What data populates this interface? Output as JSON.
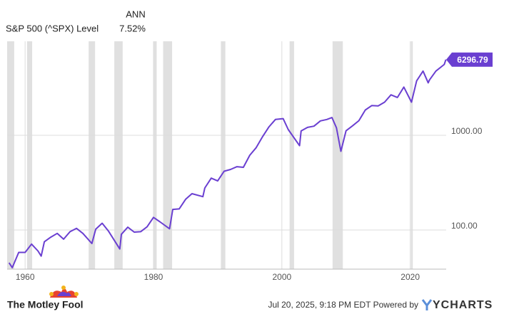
{
  "chart_data": {
    "type": "line",
    "header": "ANN",
    "annualized_return": "7.52%",
    "last_label": "6296.79",
    "log_scale": true,
    "grid": true,
    "x": [
      1957.5,
      1958,
      1959,
      1960,
      1961,
      1962,
      1962.5,
      1963,
      1964,
      1965,
      1966,
      1967,
      1968,
      1969,
      1970.4,
      1971,
      1972,
      1973,
      1974.75,
      1975,
      1976,
      1977,
      1978,
      1979,
      1980,
      1981,
      1982.5,
      1983,
      1984,
      1985,
      1986,
      1987.7,
      1988,
      1989,
      1990,
      1991,
      1992,
      1993,
      1994,
      1995,
      1996,
      1997,
      1998,
      1999,
      2000.2,
      2001,
      2002.75,
      2003,
      2004,
      2005,
      2006,
      2007,
      2007.8,
      2008.5,
      2009.2,
      2010,
      2011,
      2012,
      2013,
      2014,
      2015,
      2016,
      2017,
      2018,
      2019,
      2020.2,
      2021,
      2022,
      2022.8,
      2023,
      2024,
      2025.3,
      2025.55
    ],
    "series": [
      {
        "name": "S&P 500 (^SPX) Level",
        "color": "#6a3fd1",
        "values": [
          45,
          40,
          58,
          58,
          71,
          60,
          53,
          75,
          84,
          92,
          80,
          96,
          104,
          92,
          72,
          102,
          118,
          97,
          63,
          90,
          107,
          95,
          96,
          108,
          136,
          122,
          103,
          165,
          167,
          211,
          242,
          225,
          278,
          353,
          330,
          417,
          436,
          466,
          459,
          616,
          741,
          970,
          1229,
          1469,
          1500,
          1148,
          777,
          1112,
          1212,
          1248,
          1418,
          1468,
          1540,
          1200,
          677,
          1115,
          1258,
          1426,
          1848,
          2059,
          2044,
          2239,
          2674,
          2507,
          3231,
          2237,
          3756,
          4766,
          3580,
          3840,
          4770,
          5600,
          6296.79
        ]
      }
    ],
    "xlim": [
      1957.2,
      2025.6
    ],
    "xticks": [
      1960,
      1980,
      2000,
      2020
    ],
    "ylim": [
      38.6,
      9830
    ],
    "yticks": [
      {
        "value": 100,
        "label": "100.00"
      },
      {
        "value": 1000,
        "label": "1000.00"
      }
    ],
    "shading": [
      [
        1957.2,
        1958.3
      ],
      [
        1960.3,
        1961.1
      ],
      [
        1969.9,
        1970.9
      ],
      [
        1973.9,
        1975.2
      ],
      [
        1980.0,
        1980.5
      ],
      [
        1981.5,
        1982.9
      ],
      [
        1990.5,
        1991.2
      ],
      [
        2001.2,
        2001.9
      ],
      [
        2007.9,
        2009.5
      ],
      [
        2020.1,
        2020.4
      ]
    ],
    "footer": {
      "timestamp": "Jul 20, 2025, 9:18 PM EDT Powered by",
      "brand": "YCHARTS",
      "logo": "The Motley Fool"
    }
  }
}
